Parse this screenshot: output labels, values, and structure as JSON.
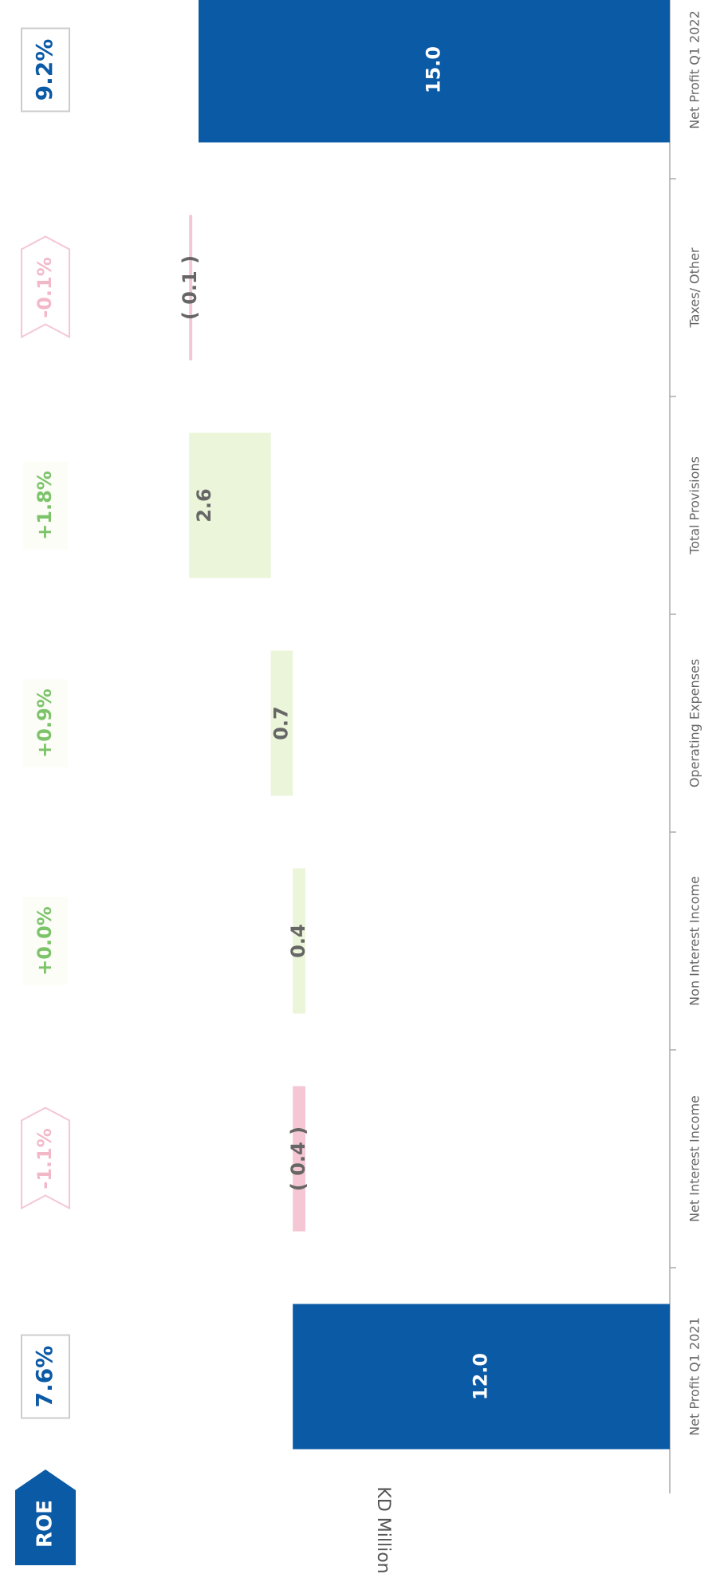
{
  "chart_data": {
    "type": "waterfall",
    "y_label": "KD Million",
    "categories": [
      "Net Profit Q1 2021",
      "Net Interest Income",
      "Non Interest Income",
      "Operating Expenses",
      "Total Provisions",
      "Taxes/ Other",
      "Net Profit Q1 2022"
    ],
    "values": [
      12.0,
      -0.4,
      0.4,
      0.7,
      2.6,
      -0.1,
      15.0
    ],
    "value_labels": [
      "12.0",
      "( 0.4 )",
      "0.4",
      "0.7",
      "2.6",
      "( 0.1 )",
      "15.0"
    ],
    "colors": {
      "total": "#0b5aa6",
      "increase": "#ebf5d9",
      "decrease": "#f5c6d4"
    },
    "roe": {
      "label": "ROE",
      "values": [
        7.6,
        -1.1,
        0.0,
        0.9,
        1.8,
        -0.1,
        9.2
      ],
      "value_labels": [
        "7.6%",
        "-1.1%",
        "+0.0%",
        "+0.9%",
        "+1.8%",
        "-0.1%",
        "9.2%"
      ]
    }
  }
}
